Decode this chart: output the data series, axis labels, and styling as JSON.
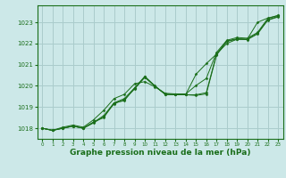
{
  "background_color": "#cce8e8",
  "grid_color": "#aacccc",
  "line_color": "#1a6e1a",
  "xlabel": "Graphe pression niveau de la mer (hPa)",
  "xlabel_fontsize": 6.5,
  "ylim": [
    1017.5,
    1023.8
  ],
  "xlim": [
    -0.5,
    23.5
  ],
  "yticks": [
    1018,
    1019,
    1020,
    1021,
    1022,
    1023
  ],
  "xticks": [
    0,
    1,
    2,
    3,
    4,
    5,
    6,
    7,
    8,
    9,
    10,
    11,
    12,
    13,
    14,
    15,
    16,
    17,
    18,
    19,
    20,
    21,
    22,
    23
  ],
  "series": [
    [
      1018.0,
      1017.9,
      1018.0,
      1018.1,
      1018.0,
      1018.25,
      1018.55,
      1019.15,
      1019.35,
      1019.85,
      1020.4,
      1019.98,
      1019.6,
      1019.58,
      1019.58,
      1019.55,
      1019.62,
      1021.45,
      1022.1,
      1022.2,
      1022.18,
      1022.45,
      1023.1,
      1023.25
    ],
    [
      1018.0,
      1017.9,
      1018.0,
      1018.1,
      1018.0,
      1018.28,
      1018.6,
      1019.2,
      1019.4,
      1019.9,
      1020.42,
      1019.98,
      1019.6,
      1019.58,
      1019.58,
      1019.58,
      1019.68,
      1021.5,
      1022.12,
      1022.22,
      1022.2,
      1022.48,
      1023.12,
      1023.28
    ],
    [
      1018.0,
      1017.9,
      1018.05,
      1018.15,
      1018.05,
      1018.4,
      1018.85,
      1019.4,
      1019.6,
      1020.1,
      1020.2,
      1019.95,
      1019.65,
      1019.62,
      1019.62,
      1020.02,
      1020.35,
      1021.58,
      1022.15,
      1022.28,
      1022.25,
      1022.52,
      1023.18,
      1023.32
    ],
    [
      1018.0,
      1017.9,
      1018.0,
      1018.1,
      1018.0,
      1018.3,
      1018.5,
      1019.2,
      1019.3,
      1019.9,
      1020.45,
      1020.0,
      1019.6,
      1019.6,
      1019.6,
      1020.55,
      1021.05,
      1021.5,
      1022.0,
      1022.2,
      1022.2,
      1023.0,
      1023.2,
      1023.32
    ]
  ]
}
